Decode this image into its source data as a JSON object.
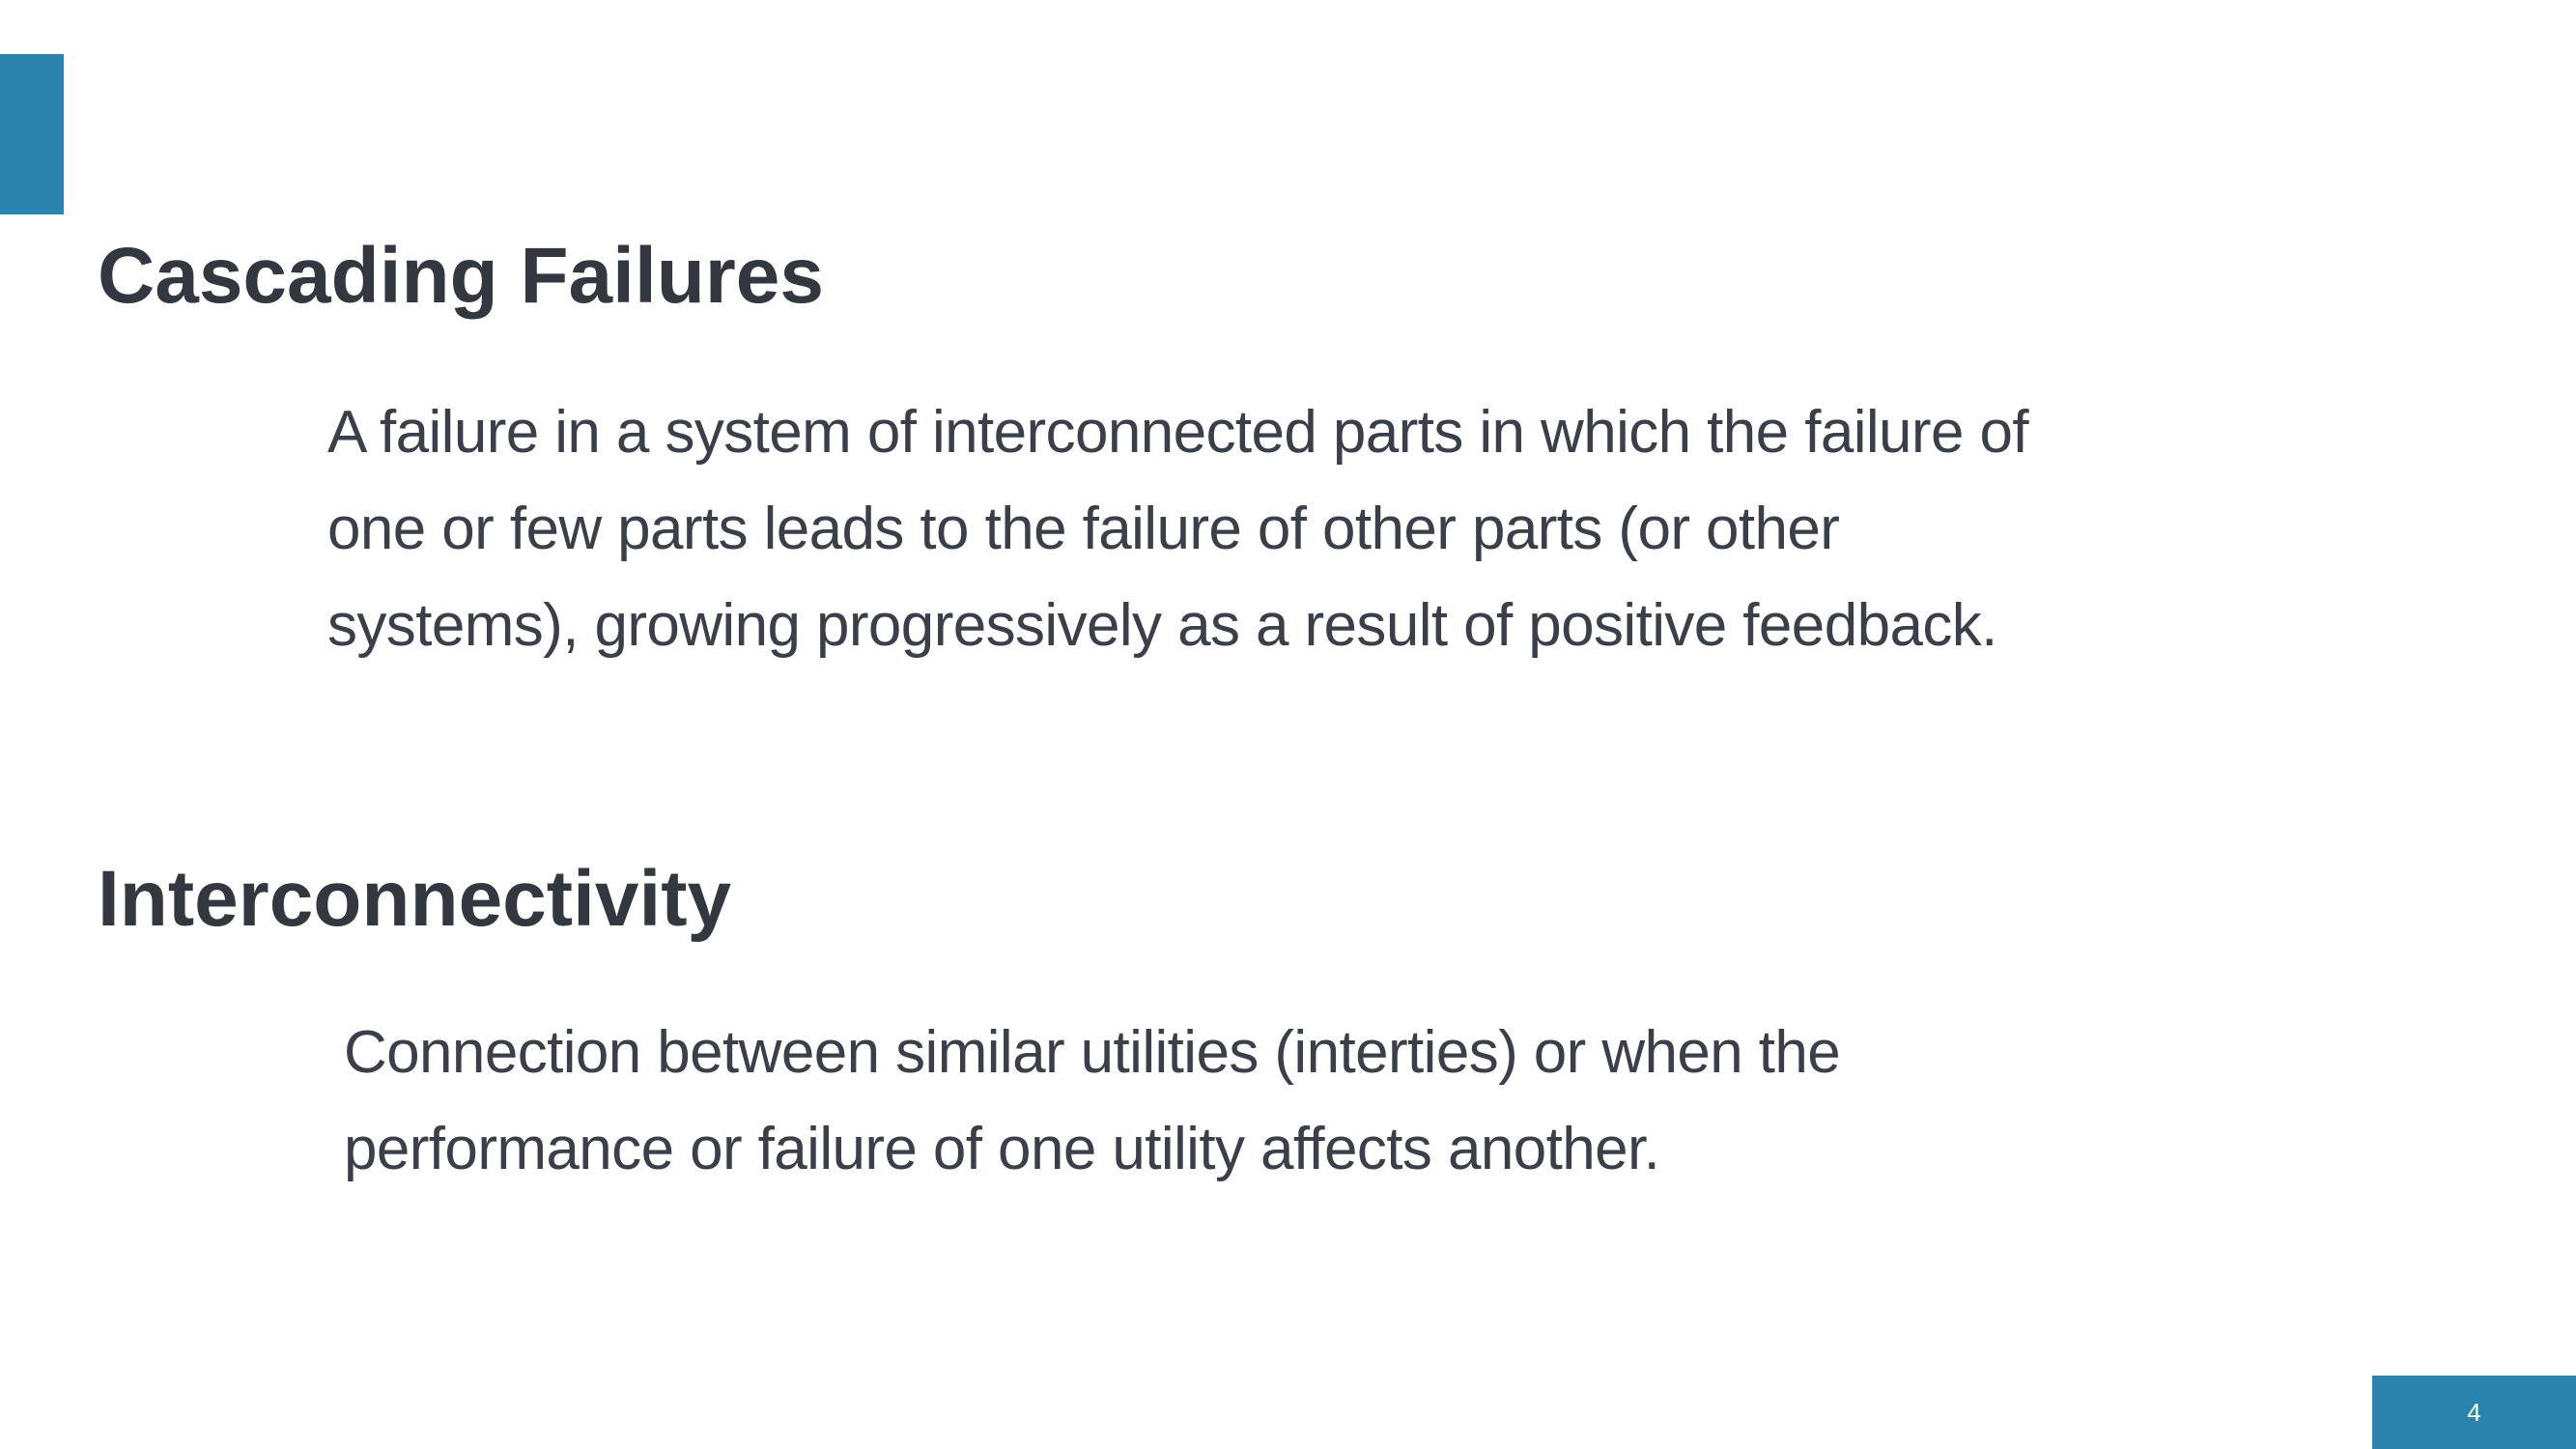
{
  "colors": {
    "accent": "#2b84ad",
    "heading_text": "#333740",
    "body_text": "#3a3f4a",
    "background": "#ffffff"
  },
  "sections": [
    {
      "heading": "Cascading Failures",
      "body_lines": [
        "A failure in a system of interconnected parts in which the failure of",
        "one or few parts leads to the failure of other parts (or other",
        "systems), growing progressively as a result of positive feedback."
      ]
    },
    {
      "heading": "Interconnectivity",
      "body_lines": [
        "Connection between similar utilities (interties) or when the",
        "performance or failure of one utility affects another."
      ]
    }
  ],
  "page_number": "4"
}
